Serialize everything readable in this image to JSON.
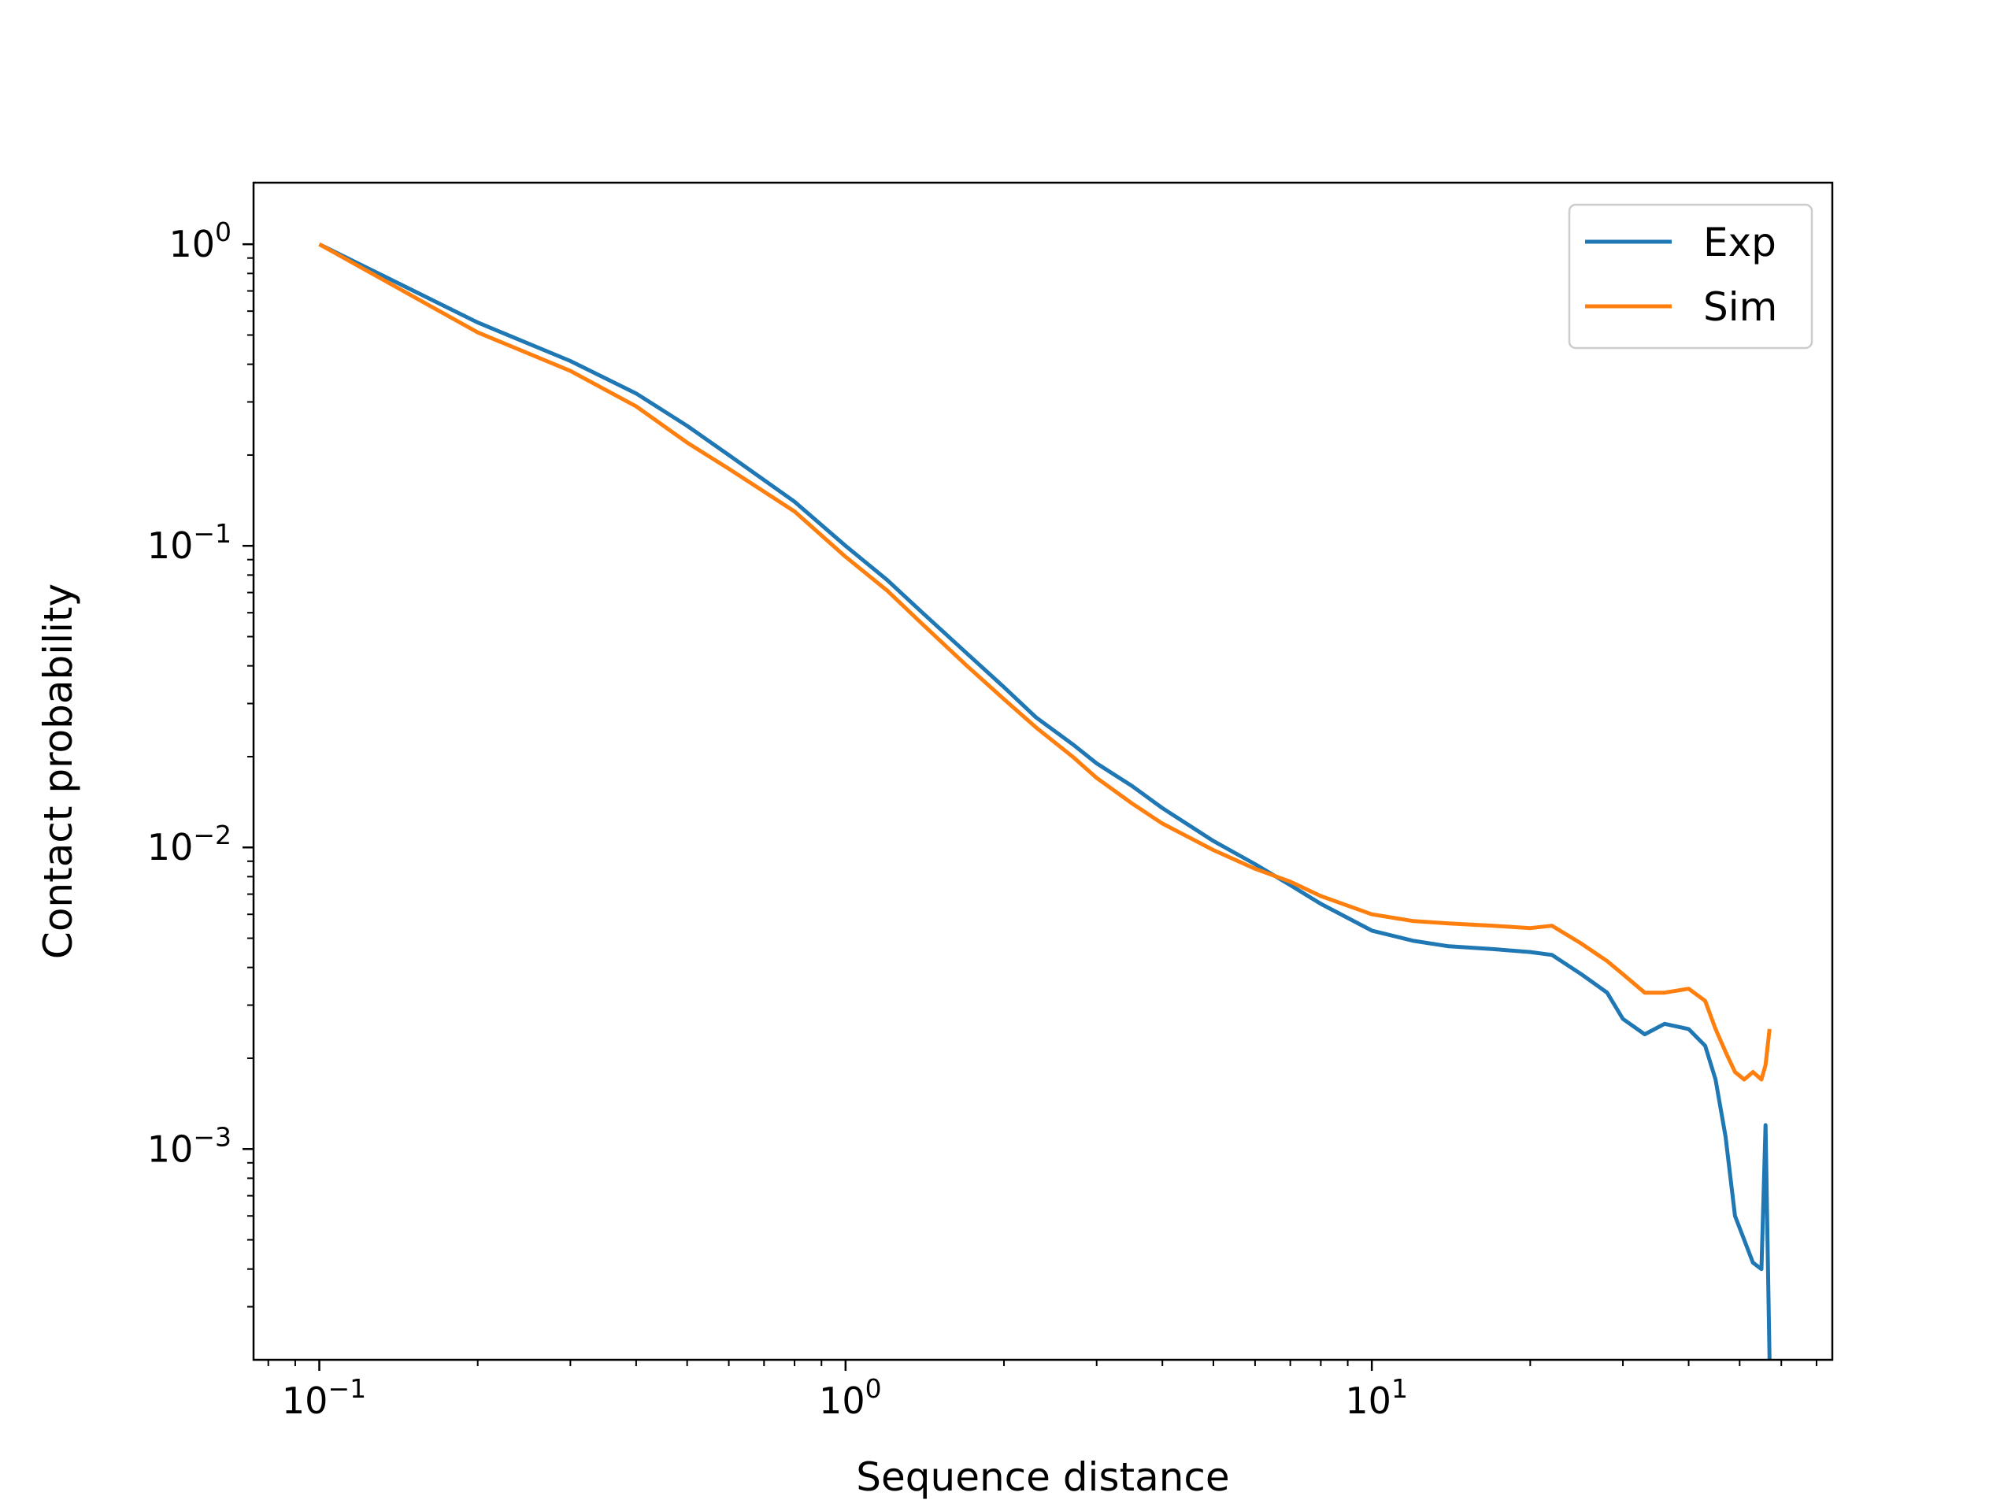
{
  "chart_data": {
    "type": "line",
    "title": "",
    "xlabel": "Sequence distance",
    "ylabel": "Contact probability",
    "xscale": "log",
    "yscale": "log",
    "xlim": [
      0.075,
      75
    ],
    "ylim": [
      0.0002,
      1.6
    ],
    "xticks": [
      {
        "value": 0.1,
        "base": "10",
        "exp": "−1"
      },
      {
        "value": 1,
        "base": "10",
        "exp": "0"
      },
      {
        "value": 10,
        "base": "10",
        "exp": "1"
      }
    ],
    "yticks": [
      {
        "value": 1,
        "base": "10",
        "exp": "0"
      },
      {
        "value": 0.1,
        "base": "10",
        "exp": "−1"
      },
      {
        "value": 0.01,
        "base": "10",
        "exp": "−2"
      },
      {
        "value": 0.001,
        "base": "10",
        "exp": "−3"
      }
    ],
    "grid": false,
    "legend_position": "top-right",
    "series": [
      {
        "name": "Exp",
        "color": "#1f77b4",
        "x": [
          0.1,
          0.2,
          0.3,
          0.4,
          0.5,
          0.6,
          0.8,
          1.0,
          1.2,
          1.4,
          1.7,
          2.0,
          2.3,
          2.7,
          3.0,
          3.5,
          4.0,
          5.0,
          6.0,
          7.0,
          8.0,
          10.0,
          12.0,
          14.0,
          17.0,
          20.0,
          22.0,
          25.0,
          28.0,
          30.0,
          33.0,
          36.0,
          40.0,
          43.0,
          45.0,
          47.0,
          49.0,
          51.0,
          53.0,
          55.0,
          56.0,
          57.0
        ],
        "y": [
          1.0,
          0.55,
          0.41,
          0.32,
          0.25,
          0.2,
          0.14,
          0.1,
          0.077,
          0.06,
          0.044,
          0.034,
          0.027,
          0.022,
          0.019,
          0.016,
          0.0135,
          0.0105,
          0.0088,
          0.0075,
          0.0065,
          0.0053,
          0.0049,
          0.0047,
          0.0046,
          0.0045,
          0.0044,
          0.0038,
          0.0033,
          0.0027,
          0.0024,
          0.0026,
          0.0025,
          0.0022,
          0.0017,
          0.0011,
          0.0006,
          0.0005,
          0.00042,
          0.0004,
          0.0012,
          0.0002
        ]
      },
      {
        "name": "Sim",
        "color": "#ff7f0e",
        "x": [
          0.1,
          0.2,
          0.3,
          0.4,
          0.5,
          0.6,
          0.8,
          1.0,
          1.2,
          1.4,
          1.7,
          2.0,
          2.3,
          2.7,
          3.0,
          3.5,
          4.0,
          5.0,
          6.0,
          7.0,
          8.0,
          10.0,
          12.0,
          14.0,
          17.0,
          20.0,
          22.0,
          25.0,
          28.0,
          30.0,
          33.0,
          36.0,
          40.0,
          43.0,
          45.0,
          47.0,
          49.0,
          51.0,
          53.0,
          55.0,
          56.0,
          57.0
        ],
        "y": [
          1.0,
          0.51,
          0.38,
          0.29,
          0.22,
          0.18,
          0.13,
          0.092,
          0.071,
          0.055,
          0.04,
          0.031,
          0.025,
          0.02,
          0.017,
          0.014,
          0.012,
          0.0098,
          0.0085,
          0.0077,
          0.0069,
          0.006,
          0.0057,
          0.0056,
          0.0055,
          0.0054,
          0.0055,
          0.0048,
          0.0042,
          0.0038,
          0.0033,
          0.0033,
          0.0034,
          0.0031,
          0.0025,
          0.0021,
          0.0018,
          0.0017,
          0.0018,
          0.0017,
          0.0019,
          0.0025
        ]
      }
    ]
  }
}
